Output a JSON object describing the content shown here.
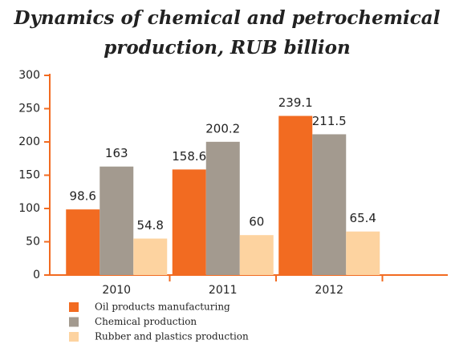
{
  "chart_data": {
    "type": "bar",
    "title": [
      "Dynamics of chemical and petrochemical",
      "production, RUB billion"
    ],
    "categories": [
      "2010",
      "2011",
      "2012"
    ],
    "series": [
      {
        "name": "Oil products manufacturing",
        "color": "#f26b21",
        "values": [
          98.6,
          158.6,
          239.1
        ]
      },
      {
        "name": "Chemical production",
        "color": "#a39a8f",
        "values": [
          163,
          200.2,
          211.5
        ]
      },
      {
        "name": "Rubber and plastics production",
        "color": "#fdd3a0",
        "values": [
          54.8,
          60,
          65.4
        ]
      }
    ],
    "ylim": [
      0,
      300
    ],
    "yticks": [
      0,
      50,
      100,
      150,
      200,
      250,
      300
    ],
    "grid": false,
    "axis_color": "#f26b21",
    "legend": "bottom"
  }
}
